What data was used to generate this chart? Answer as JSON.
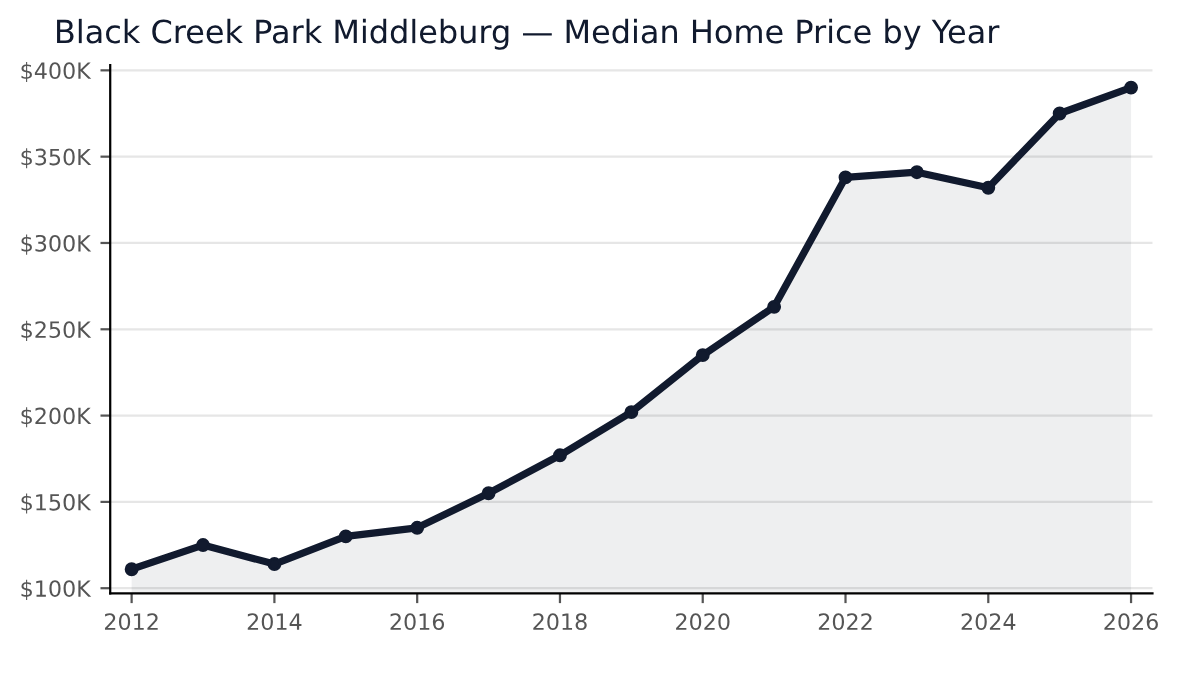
{
  "chart_data": {
    "type": "area",
    "title": "Black Creek Park Middleburg — Median Home Price by Year",
    "x": [
      2012,
      2013,
      2014,
      2015,
      2016,
      2017,
      2018,
      2019,
      2020,
      2021,
      2022,
      2023,
      2024,
      2025,
      2026
    ],
    "series": [
      {
        "color": "#111a2e",
        "values": [
          111,
          125,
          114,
          130,
          135,
          155,
          177,
          202,
          235,
          263,
          338,
          341,
          332,
          375,
          390
        ]
      }
    ],
    "xlim": [
      2011.7,
      2026.3
    ],
    "xticks": [
      2012,
      2014,
      2016,
      2018,
      2020,
      2022,
      2024,
      2026
    ],
    "ylim": [
      97,
      403
    ],
    "yticks": [
      {
        "value": 100,
        "label": "$100K"
      },
      {
        "value": 150,
        "label": "$150K"
      },
      {
        "value": 200,
        "label": "$200K"
      },
      {
        "value": 250,
        "label": "$250K"
      },
      {
        "value": 300,
        "label": "$300K"
      },
      {
        "value": 350,
        "label": "$350K"
      },
      {
        "value": 400,
        "label": "$400K"
      }
    ],
    "grid": "y",
    "marker": "circle",
    "line_style": "solid"
  }
}
